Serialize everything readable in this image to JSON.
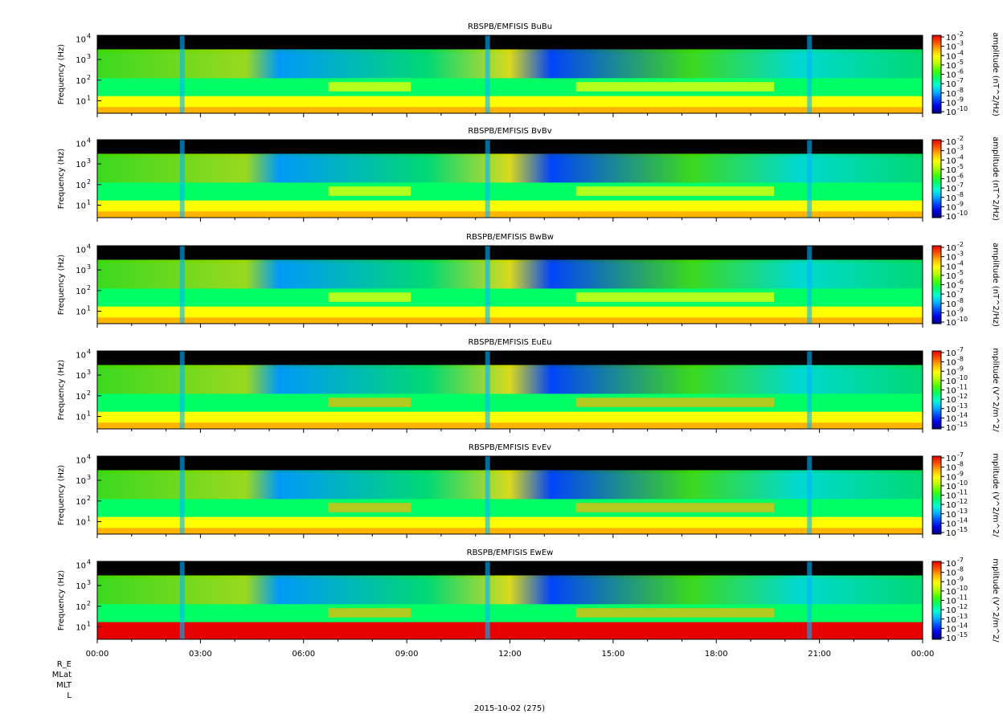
{
  "page": {
    "date_label": "2015-10-02 (275)",
    "ephemeris_labels": [
      "R_E",
      "MLat",
      "MLT",
      "L"
    ]
  },
  "colors": {
    "palette": [
      "#000082",
      "#0000e6",
      "#0050ff",
      "#00b4ff",
      "#00ffd2",
      "#00ff64",
      "#46ff00",
      "#b4ff00",
      "#ffff00",
      "#ffb400",
      "#ff5000",
      "#e60000"
    ],
    "background_gap": "#000000"
  },
  "chart_data": [
    {
      "type": "heatmap",
      "title": "RBSPB/EMFISIS  BuBu",
      "ylabel": "Frequency (Hz)",
      "y_scale": "log",
      "y_ticks": [
        "10",
        "10",
        "10",
        "10"
      ],
      "y_tick_exponents": [
        "1",
        "2",
        "3",
        "4"
      ],
      "colorbar_label": "amplitude (nT^2/Hz)",
      "colorbar_ticks": [
        "10",
        "10",
        "10",
        "10",
        "10",
        "10",
        "10",
        "10",
        "10"
      ],
      "colorbar_exponents": [
        "-2",
        "-3",
        "-4",
        "-5",
        "-6",
        "-7",
        "-8",
        "-9",
        "-10"
      ],
      "colorbar_range": [
        -10,
        -2
      ]
    },
    {
      "type": "heatmap",
      "title": "RBSPB/EMFISIS  BvBv",
      "ylabel": "Frequency (Hz)",
      "y_scale": "log",
      "y_ticks": [
        "10",
        "10",
        "10",
        "10"
      ],
      "y_tick_exponents": [
        "1",
        "2",
        "3",
        "4"
      ],
      "colorbar_label": "amplitude (nT^2/Hz)",
      "colorbar_ticks": [
        "10",
        "10",
        "10",
        "10",
        "10",
        "10",
        "10",
        "10",
        "10"
      ],
      "colorbar_exponents": [
        "-2",
        "-3",
        "-4",
        "-5",
        "-6",
        "-7",
        "-8",
        "-9",
        "-10"
      ],
      "colorbar_range": [
        -10,
        -2
      ]
    },
    {
      "type": "heatmap",
      "title": "RBSPB/EMFISIS  BwBw",
      "ylabel": "Frequency (Hz)",
      "y_scale": "log",
      "y_ticks": [
        "10",
        "10",
        "10",
        "10"
      ],
      "y_tick_exponents": [
        "1",
        "2",
        "3",
        "4"
      ],
      "colorbar_label": "amplitude (nT^2/Hz)",
      "colorbar_ticks": [
        "10",
        "10",
        "10",
        "10",
        "10",
        "10",
        "10",
        "10",
        "10"
      ],
      "colorbar_exponents": [
        "-2",
        "-3",
        "-4",
        "-5",
        "-6",
        "-7",
        "-8",
        "-9",
        "-10"
      ],
      "colorbar_range": [
        -10,
        -2
      ]
    },
    {
      "type": "heatmap",
      "title": "RBSPB/EMFISIS  EuEu",
      "ylabel": "Frequency (Hz)",
      "y_scale": "log",
      "y_ticks": [
        "10",
        "10",
        "10",
        "10"
      ],
      "y_tick_exponents": [
        "1",
        "2",
        "3",
        "4"
      ],
      "colorbar_label": "mplitude (V^2/m^2/",
      "colorbar_ticks": [
        "10",
        "10",
        "10",
        "10",
        "10",
        "10",
        "10",
        "10",
        "10"
      ],
      "colorbar_exponents": [
        "-7",
        "-8",
        "-9",
        "-10",
        "-11",
        "-12",
        "-13",
        "-14",
        "-15"
      ],
      "colorbar_range": [
        -15,
        -7
      ]
    },
    {
      "type": "heatmap",
      "title": "RBSPB/EMFISIS  EvEv",
      "ylabel": "Frequency (Hz)",
      "y_scale": "log",
      "y_ticks": [
        "10",
        "10",
        "10",
        "10"
      ],
      "y_tick_exponents": [
        "1",
        "2",
        "3",
        "4"
      ],
      "colorbar_label": "mplitude (V^2/m^2/",
      "colorbar_ticks": [
        "10",
        "10",
        "10",
        "10",
        "10",
        "10",
        "10",
        "10",
        "10"
      ],
      "colorbar_exponents": [
        "-7",
        "-8",
        "-9",
        "-10",
        "-11",
        "-12",
        "-13",
        "-14",
        "-15"
      ],
      "colorbar_range": [
        -15,
        -7
      ]
    },
    {
      "type": "heatmap",
      "title": "RBSPB/EMFISIS  EwEw",
      "ylabel": "Frequency (Hz)",
      "y_scale": "log",
      "y_ticks": [
        "10",
        "10",
        "10",
        "10"
      ],
      "y_tick_exponents": [
        "1",
        "2",
        "3",
        "4"
      ],
      "colorbar_label": "mplitude (V^2/m^2/",
      "colorbar_ticks": [
        "10",
        "10",
        "10",
        "10",
        "10",
        "10",
        "10",
        "10",
        "10"
      ],
      "colorbar_exponents": [
        "-7",
        "-8",
        "-9",
        "-10",
        "-11",
        "-12",
        "-13",
        "-14",
        "-15"
      ],
      "colorbar_range": [
        -15,
        -7
      ],
      "x_ticks": [
        "00:00",
        "03:00",
        "06:00",
        "09:00",
        "12:00",
        "15:00",
        "18:00",
        "21:00",
        "00:00"
      ]
    }
  ]
}
